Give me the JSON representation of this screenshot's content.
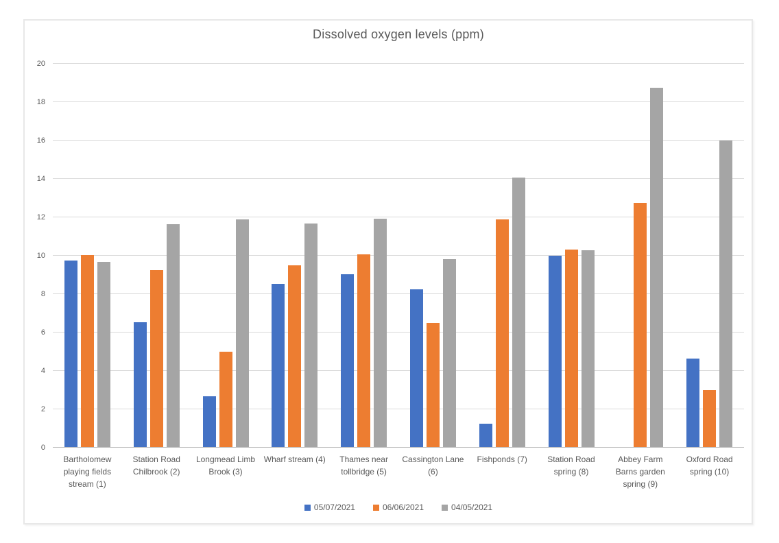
{
  "chart_data": {
    "type": "bar",
    "title": "Dissolved oxygen levels (ppm)",
    "xlabel": "",
    "ylabel": "",
    "ylim": [
      0,
      20
    ],
    "yticks": [
      0,
      2,
      4,
      6,
      8,
      10,
      12,
      14,
      16,
      18,
      20
    ],
    "grid": true,
    "legend_position": "bottom",
    "categories": [
      "Bartholomew playing fields stream (1)",
      "Station Road Chilbrook (2)",
      "Longmead Limb Brook (3)",
      "Wharf stream (4)",
      "Thames near tollbridge (5)",
      "Cassington Lane (6)",
      "Fishponds (7)",
      "Station Road spring (8)",
      "Abbey Farm Barns garden spring (9)",
      "Oxford Road spring (10)"
    ],
    "series": [
      {
        "name": "05/07/2021",
        "color": "#4472c4",
        "values": [
          9.7,
          6.5,
          2.65,
          8.5,
          9.0,
          8.2,
          1.2,
          9.95,
          null,
          4.6
        ]
      },
      {
        "name": "06/06/2021",
        "color": "#ed7d31",
        "values": [
          10.0,
          9.2,
          4.95,
          9.45,
          10.05,
          6.45,
          11.85,
          10.3,
          12.7,
          2.95
        ]
      },
      {
        "name": "04/05/2021",
        "color": "#a5a5a5",
        "values": [
          9.65,
          11.6,
          11.85,
          11.65,
          11.9,
          9.8,
          14.05,
          10.25,
          18.7,
          15.95
        ]
      }
    ]
  }
}
